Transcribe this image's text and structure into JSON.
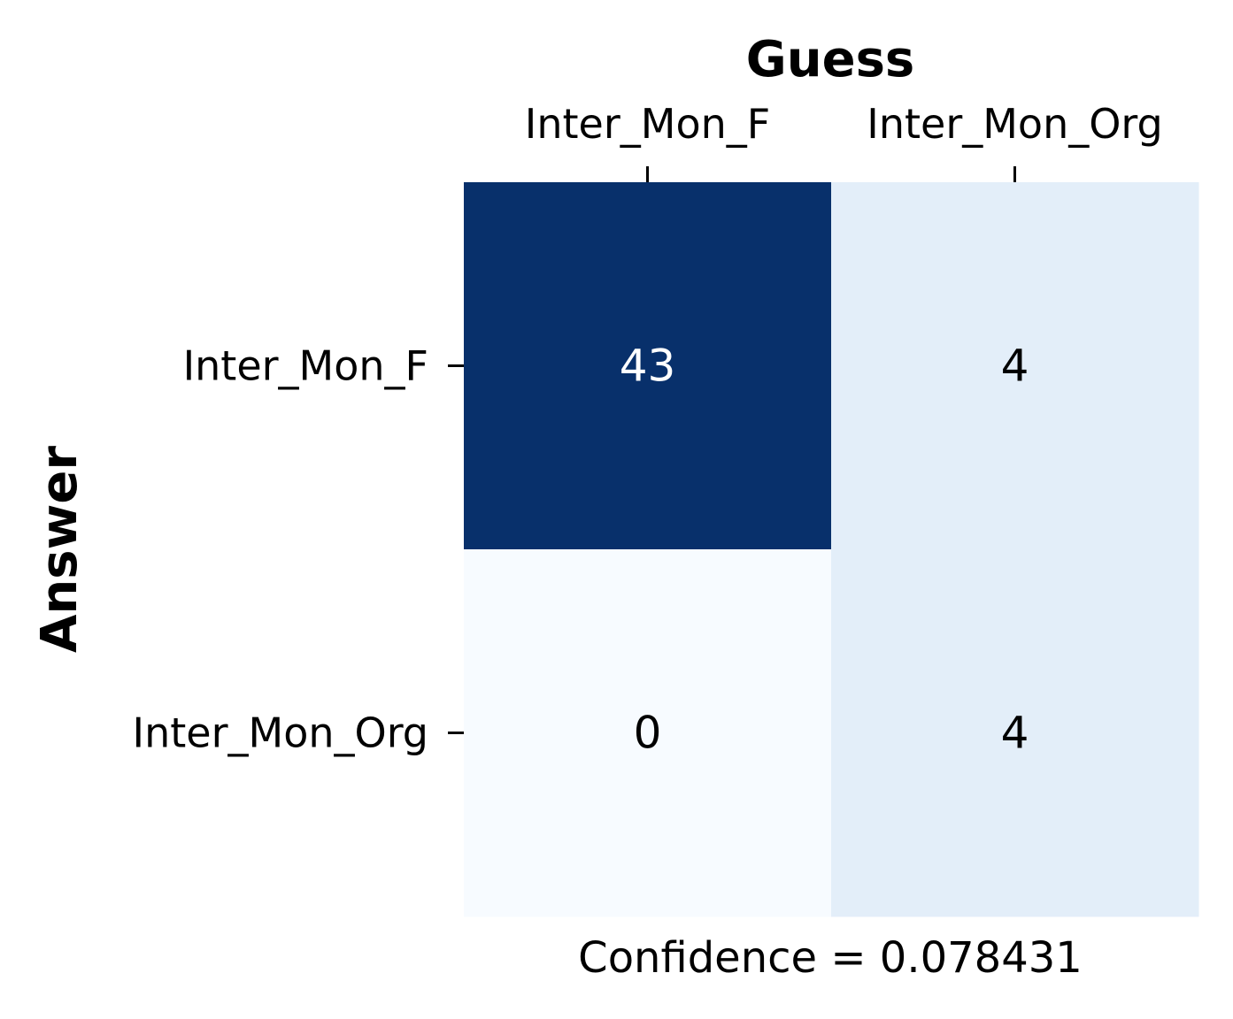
{
  "chart_data": {
    "type": "heatmap",
    "x_title": "Guess",
    "y_title": "Answer",
    "x_categories": [
      "Inter_Mon_F",
      "Inter_Mon_Org"
    ],
    "y_categories": [
      "Inter_Mon_F",
      "Inter_Mon_Org"
    ],
    "values": [
      [
        43,
        4
      ],
      [
        0,
        4
      ]
    ],
    "cell_colors": [
      [
        "#08306b",
        "#e3eef9"
      ],
      [
        "#f7fbff",
        "#e3eef9"
      ]
    ],
    "annotation_colors": [
      [
        "#ffffff",
        "#000000"
      ],
      [
        "#000000",
        "#000000"
      ]
    ],
    "caption": "Confidence = 0.078431",
    "colormap": "Blues",
    "x_axis_position": "top",
    "grid": false
  }
}
